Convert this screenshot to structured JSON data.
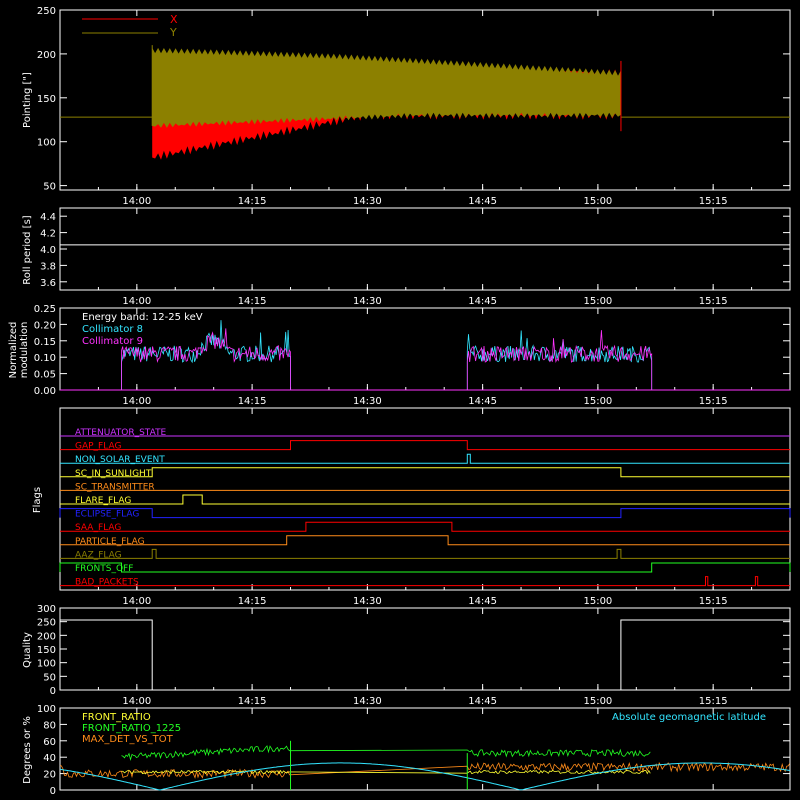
{
  "colors": {
    "background": "#000000",
    "axes": "#ffffff",
    "red": "#ff0000",
    "olive": "#8c8000",
    "cyan": "#33e5ff",
    "magenta": "#ff33ff",
    "green": "#22ff22",
    "orange": "#ff8c1a",
    "yellow": "#ffff33",
    "blue": "#2222ff",
    "purple": "#cc33ff"
  },
  "chart_data": [
    {
      "id": "pointing",
      "type": "line",
      "ylabel": "Pointing [\"]",
      "ylim": [
        45,
        250
      ],
      "yticks": [
        50,
        100,
        150,
        200,
        250
      ],
      "time_ticks": [
        "14:00",
        "14:15",
        "14:30",
        "14:45",
        "15:00",
        "15:15"
      ],
      "series": [
        {
          "name": "X",
          "color": "red"
        },
        {
          "name": "Y",
          "color": "olive"
        }
      ],
      "baseline": 128,
      "x_start": "14:02",
      "x_end": "15:03"
    },
    {
      "id": "roll",
      "type": "line",
      "ylabel": "Roll period [s]",
      "ylim": [
        3.5,
        4.5
      ],
      "yticks": [
        "3.6",
        "3.8",
        "4.0",
        "4.2",
        "4.4"
      ],
      "time_ticks": [
        "14:00",
        "14:15",
        "14:30",
        "14:45",
        "15:00",
        "15:15"
      ],
      "value": 4.05
    },
    {
      "id": "modulation",
      "type": "line",
      "ylabel": "Normalized modulation",
      "ylim": [
        0,
        0.25
      ],
      "yticks": [
        "0.00",
        "0.05",
        "0.10",
        "0.15",
        "0.20",
        "0.25"
      ],
      "time_ticks": [
        "14:00",
        "14:15",
        "14:30",
        "14:45",
        "15:00",
        "15:15"
      ],
      "legend": [
        "Energy band: 12-25 keV",
        "Collimator 8",
        "Collimator 9"
      ],
      "series": [
        {
          "name": "Collimator 8",
          "color": "cyan"
        },
        {
          "name": "Collimator 9",
          "color": "magenta"
        }
      ],
      "segments": [
        [
          "13:58",
          "14:20"
        ],
        [
          "14:43",
          "15:07"
        ]
      ]
    },
    {
      "id": "flags",
      "type": "line",
      "ylabel": "Flags",
      "time_ticks": [
        "14:00",
        "14:15",
        "14:30",
        "14:45",
        "15:00",
        "15:15"
      ],
      "series": [
        {
          "name": "ATTENUATOR_STATE",
          "color": "purple",
          "on": []
        },
        {
          "name": "GAP_FLAG",
          "color": "red",
          "on": [
            [
              "14:20",
              "14:43"
            ]
          ]
        },
        {
          "name": "NON_SOLAR_EVENT",
          "color": "cyan",
          "on": [
            [
              "14:43",
              "14:43.4"
            ]
          ]
        },
        {
          "name": "SC_IN_SUNLIGHT",
          "color": "yellow",
          "on": [
            [
              "14:02",
              "15:03"
            ]
          ]
        },
        {
          "name": "SC_TRANSMITTER",
          "color": "orange",
          "on": []
        },
        {
          "name": "FLARE_FLAG",
          "color": "yellow",
          "on": [
            [
              "14:06",
              "14:08.5"
            ]
          ]
        },
        {
          "name": "ECLIPSE_FLAG",
          "color": "blue",
          "on": [
            [
              "13:50",
              "14:02"
            ],
            [
              "15:03",
              "15:25"
            ]
          ]
        },
        {
          "name": "SAA_FLAG",
          "color": "red",
          "on": [
            [
              "14:22",
              "14:41"
            ]
          ]
        },
        {
          "name": "PARTICLE_FLAG",
          "color": "orange",
          "on": [
            [
              "14:19.5",
              "14:40.5"
            ]
          ]
        },
        {
          "name": "AAZ_FLAG",
          "color": "olive",
          "on": [
            [
              "14:02",
              "14:02.5"
            ],
            [
              "15:02.5",
              "15:03"
            ]
          ]
        },
        {
          "name": "FRONTS_OFF",
          "color": "green",
          "on": [
            [
              "13:50",
              "13:58"
            ],
            [
              "15:07",
              "15:25"
            ]
          ]
        },
        {
          "name": "BAD_PACKETS",
          "color": "red",
          "on": [
            [
              "15:14",
              "15:14.3"
            ],
            [
              "15:20.5",
              "15:20.8"
            ]
          ]
        }
      ]
    },
    {
      "id": "quality",
      "type": "line",
      "ylabel": "Quality",
      "ylim": [
        0,
        300
      ],
      "yticks": [
        0,
        50,
        100,
        150,
        200,
        250,
        300
      ],
      "time_ticks": [
        "14:00",
        "14:15",
        "14:30",
        "14:45",
        "15:00",
        "15:15"
      ],
      "steps": [
        [
          "13:50",
          256
        ],
        [
          "14:02",
          0
        ],
        [
          "15:03",
          256
        ],
        [
          "15:25",
          256
        ]
      ]
    },
    {
      "id": "ratios",
      "type": "line",
      "ylabel": "Degrees or %",
      "ylim": [
        0,
        100
      ],
      "yticks": [
        0,
        20,
        40,
        60,
        80,
        100
      ],
      "time_ticks": [
        "14:00",
        "14:15",
        "14:30",
        "14:45",
        "15:00",
        "15:15"
      ],
      "series": [
        {
          "name": "FRONT_RATIO",
          "color": "yellow"
        },
        {
          "name": "FRONT_RATIO_1225",
          "color": "green"
        },
        {
          "name": "MAX_DET_VS_TOT",
          "color": "orange"
        },
        {
          "name": "Absolute geomagnetic latitude",
          "color": "cyan"
        }
      ]
    }
  ]
}
